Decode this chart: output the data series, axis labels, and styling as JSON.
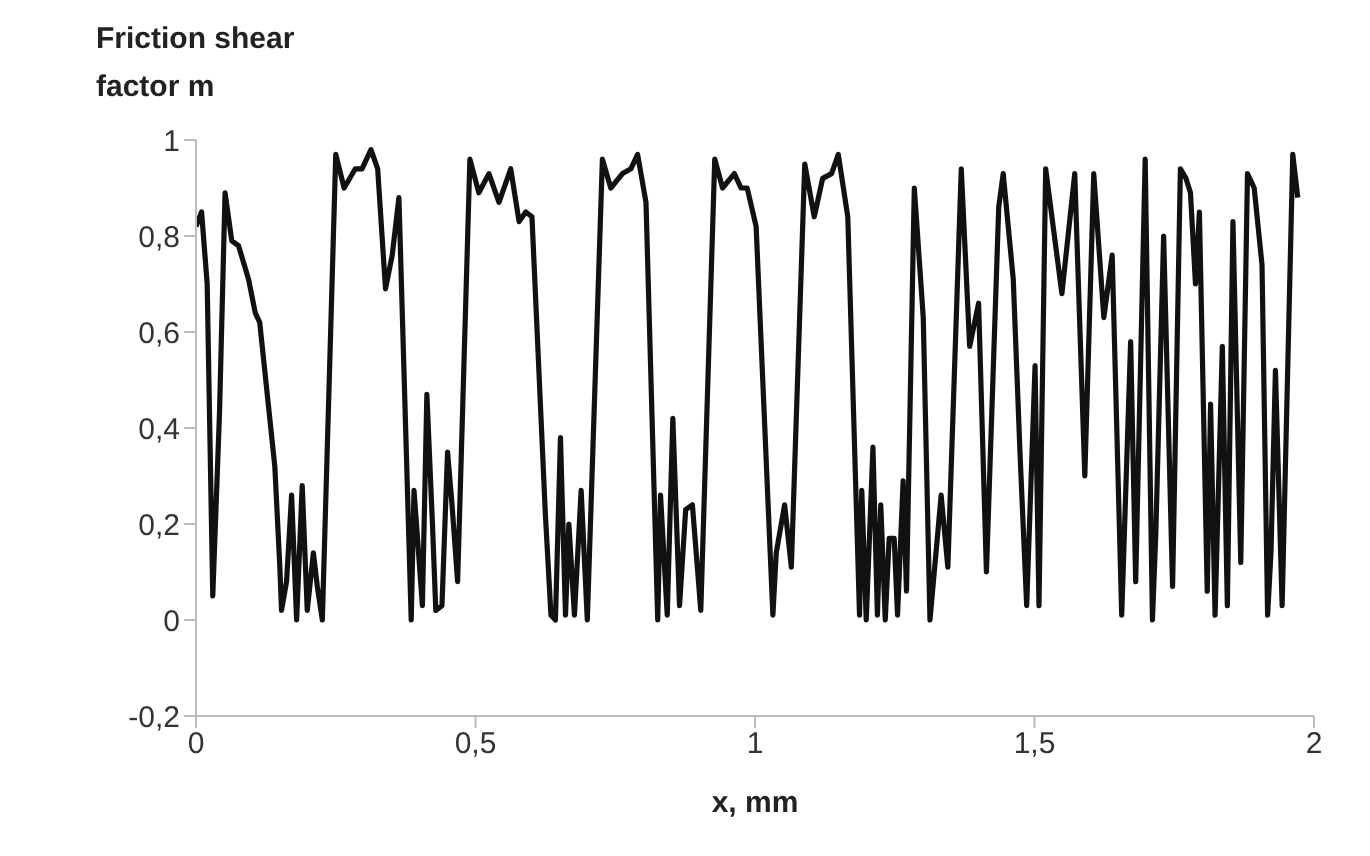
{
  "chart_data": {
    "type": "line",
    "xlabel": "x, mm",
    "ylabel": "Friction shear factor m",
    "xlim": [
      0,
      2
    ],
    "ylim": [
      -0.2,
      1
    ],
    "xticks": [
      0,
      {
        "value": 0.5,
        "label": "0,5"
      },
      1,
      {
        "value": 1.5,
        "label": "1,5"
      },
      2
    ],
    "yticks": [
      {
        "value": -0.2,
        "label": "-0,2"
      },
      0,
      {
        "value": 0.2,
        "label": "0,2"
      },
      {
        "value": 0.4,
        "label": "0,4"
      },
      {
        "value": 0.6,
        "label": "0,6"
      },
      {
        "value": 0.8,
        "label": "0,8"
      },
      1
    ],
    "grid": false,
    "legend": false,
    "marker": "none",
    "line_style": "solid",
    "series": [
      {
        "color": "#111111",
        "x": [
          0,
          0.01,
          0.02,
          0.03,
          0.042,
          0.052,
          0.064,
          0.076,
          0.094,
          0.106,
          0.114,
          0.141,
          0.15,
          0.153,
          0.162,
          0.171,
          0.18,
          0.19,
          0.199,
          0.21,
          0.217,
          0.226,
          0.25,
          0.265,
          0.285,
          0.297,
          0.313,
          0.325,
          0.339,
          0.351,
          0.363,
          0.385,
          0.39,
          0.405,
          0.413,
          0.423,
          0.429,
          0.44,
          0.45,
          0.458,
          0.468,
          0.49,
          0.506,
          0.524,
          0.542,
          0.563,
          0.578,
          0.59,
          0.601,
          0.625,
          0.635,
          0.643,
          0.652,
          0.661,
          0.667,
          0.677,
          0.689,
          0.7,
          0.727,
          0.742,
          0.763,
          0.778,
          0.79,
          0.805,
          0.826,
          0.831,
          0.843,
          0.853,
          0.865,
          0.876,
          0.888,
          0.903,
          0.928,
          0.942,
          0.963,
          0.975,
          0.986,
          1.002,
          1.032,
          1.038,
          1.053,
          1.065,
          1.089,
          1.106,
          1.121,
          1.137,
          1.149,
          1.166,
          1.187,
          1.191,
          1.199,
          1.211,
          1.219,
          1.225,
          1.233,
          1.24,
          1.249,
          1.255,
          1.265,
          1.271,
          1.285,
          1.301,
          1.313,
          1.333,
          1.345,
          1.369,
          1.384,
          1.4,
          1.414,
          1.436,
          1.444,
          1.462,
          1.474,
          1.486,
          1.501,
          1.508,
          1.52,
          1.549,
          1.572,
          1.59,
          1.606,
          1.624,
          1.639,
          1.656,
          1.672,
          1.681,
          1.698,
          1.711,
          1.717,
          1.731,
          1.747,
          1.761,
          1.771,
          1.779,
          1.788,
          1.795,
          1.809,
          1.815,
          1.823,
          1.836,
          1.845,
          1.855,
          1.869,
          1.881,
          1.893,
          1.907,
          1.917,
          1.923,
          1.931,
          1.943,
          1.962,
          1.971
        ],
        "values": [
          0.82,
          0.85,
          0.7,
          0.05,
          0.43,
          0.89,
          0.79,
          0.78,
          0.71,
          0.64,
          0.62,
          0.32,
          0.11,
          0.02,
          0.08,
          0.26,
          0,
          0.28,
          0.02,
          0.14,
          0.07,
          0,
          0.97,
          0.9,
          0.94,
          0.94,
          0.98,
          0.94,
          0.69,
          0.76,
          0.88,
          0,
          0.27,
          0.03,
          0.47,
          0.2,
          0.02,
          0.03,
          0.35,
          0.24,
          0.08,
          0.96,
          0.89,
          0.93,
          0.87,
          0.94,
          0.83,
          0.85,
          0.84,
          0.22,
          0.01,
          0,
          0.38,
          0.01,
          0.2,
          0.01,
          0.27,
          0,
          0.96,
          0.9,
          0.93,
          0.94,
          0.97,
          0.87,
          0,
          0.26,
          0.01,
          0.42,
          0.03,
          0.23,
          0.24,
          0.02,
          0.96,
          0.9,
          0.93,
          0.9,
          0.9,
          0.82,
          0.01,
          0.14,
          0.24,
          0.11,
          0.95,
          0.84,
          0.92,
          0.93,
          0.97,
          0.84,
          0.01,
          0.27,
          0,
          0.36,
          0.01,
          0.24,
          0,
          0.17,
          0.17,
          0.01,
          0.29,
          0.06,
          0.9,
          0.63,
          0,
          0.26,
          0.11,
          0.94,
          0.57,
          0.66,
          0.1,
          0.86,
          0.93,
          0.71,
          0.35,
          0.03,
          0.53,
          0.03,
          0.94,
          0.68,
          0.93,
          0.3,
          0.93,
          0.63,
          0.76,
          0.01,
          0.58,
          0.08,
          0.96,
          0,
          0.18,
          0.8,
          0.07,
          0.94,
          0.92,
          0.89,
          0.7,
          0.85,
          0.06,
          0.45,
          0.01,
          0.57,
          0.03,
          0.83,
          0.12,
          0.93,
          0.9,
          0.74,
          0.01,
          0.14,
          0.52,
          0.03,
          0.97,
          0.88
        ]
      }
    ]
  }
}
